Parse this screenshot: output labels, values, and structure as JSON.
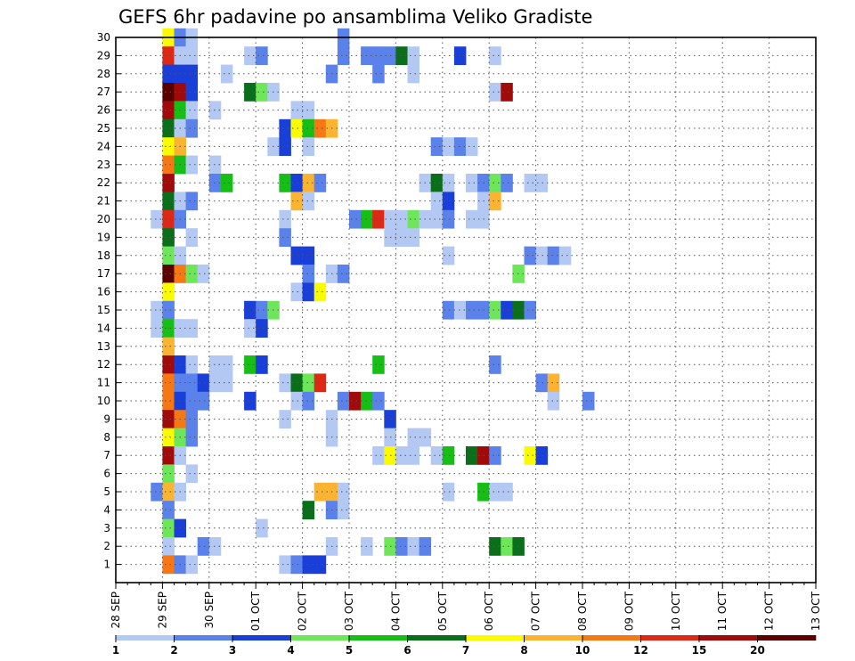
{
  "chart_data": {
    "type": "heatmap",
    "title": "GEFS 6hr padavine po ansamblima Veliko Gradiste",
    "x_ticks": [
      "28 SEP",
      "29 SEP",
      "30 SEP",
      "01 OCT",
      "02 OCT",
      "03 OCT",
      "04 OCT",
      "05 OCT",
      "06 OCT",
      "07 OCT",
      "08 OCT",
      "09 OCT",
      "10 OCT",
      "11 OCT",
      "12 OCT",
      "13 OCT"
    ],
    "y_ticks": [
      1,
      2,
      3,
      4,
      5,
      6,
      7,
      8,
      9,
      10,
      11,
      12,
      13,
      14,
      15,
      16,
      17,
      18,
      19,
      20,
      21,
      22,
      23,
      24,
      25,
      26,
      27,
      28,
      29,
      30
    ],
    "grid": true,
    "legend": "bottom colorbar",
    "colorbar": {
      "labels": [
        "1",
        "2",
        "3",
        "4",
        "5",
        "6",
        "7",
        "8",
        "10",
        "12",
        "15",
        "20"
      ],
      "colors": [
        "#b4c8f4",
        "#5a82ea",
        "#1a3ed8",
        "#6ee65a",
        "#16be16",
        "#0a6e1a",
        "#fafa00",
        "#fab432",
        "#f57814",
        "#dc2814",
        "#a00a0a",
        "#5a0000"
      ]
    },
    "cells": [
      [
        29.0,
        30,
        6
      ],
      [
        29.25,
        30,
        1
      ],
      [
        29.5,
        30,
        0
      ],
      [
        32.75,
        30,
        1
      ],
      [
        29.0,
        29,
        9
      ],
      [
        29.25,
        29,
        0
      ],
      [
        29.5,
        29,
        0
      ],
      [
        30.75,
        29,
        0
      ],
      [
        31.0,
        29,
        1
      ],
      [
        32.75,
        29,
        1
      ],
      [
        33.25,
        29,
        1
      ],
      [
        33.5,
        29,
        1
      ],
      [
        33.75,
        29,
        1
      ],
      [
        34.0,
        29,
        5
      ],
      [
        34.25,
        29,
        0
      ],
      [
        35.25,
        29,
        2
      ],
      [
        36.0,
        29,
        0
      ],
      [
        29.0,
        28,
        2
      ],
      [
        29.25,
        28,
        2
      ],
      [
        29.5,
        28,
        2
      ],
      [
        30.25,
        28,
        0
      ],
      [
        32.5,
        28,
        1
      ],
      [
        33.5,
        28,
        1
      ],
      [
        34.25,
        28,
        0
      ],
      [
        29.0,
        27,
        11
      ],
      [
        29.25,
        27,
        10
      ],
      [
        29.5,
        27,
        2
      ],
      [
        30.75,
        27,
        5
      ],
      [
        31.0,
        27,
        3
      ],
      [
        31.25,
        27,
        0
      ],
      [
        36.0,
        27,
        0
      ],
      [
        36.25,
        27,
        10
      ],
      [
        29.0,
        26,
        10
      ],
      [
        29.25,
        26,
        4
      ],
      [
        29.5,
        26,
        0
      ],
      [
        30.0,
        26,
        0
      ],
      [
        31.75,
        26,
        0
      ],
      [
        32.0,
        26,
        0
      ],
      [
        29.0,
        25,
        5
      ],
      [
        29.25,
        25,
        0
      ],
      [
        29.5,
        25,
        1
      ],
      [
        31.5,
        25,
        2
      ],
      [
        31.75,
        25,
        6
      ],
      [
        32.0,
        25,
        4
      ],
      [
        32.25,
        25,
        8
      ],
      [
        32.5,
        25,
        7
      ],
      [
        29.0,
        24,
        6
      ],
      [
        29.25,
        24,
        7
      ],
      [
        31.25,
        24,
        0
      ],
      [
        31.5,
        24,
        2
      ],
      [
        32.0,
        24,
        0
      ],
      [
        34.75,
        24,
        1
      ],
      [
        35.0,
        24,
        0
      ],
      [
        35.25,
        24,
        1
      ],
      [
        35.5,
        24,
        0
      ],
      [
        29.0,
        23,
        8
      ],
      [
        29.25,
        23,
        4
      ],
      [
        29.5,
        23,
        0
      ],
      [
        30.0,
        23,
        0
      ],
      [
        29.0,
        22,
        10
      ],
      [
        30.0,
        22,
        1
      ],
      [
        30.25,
        22,
        4
      ],
      [
        31.5,
        22,
        4
      ],
      [
        31.75,
        22,
        2
      ],
      [
        32.0,
        22,
        7
      ],
      [
        32.25,
        22,
        1
      ],
      [
        34.5,
        22,
        0
      ],
      [
        34.75,
        22,
        5
      ],
      [
        35.0,
        22,
        0
      ],
      [
        35.5,
        22,
        0
      ],
      [
        35.75,
        22,
        1
      ],
      [
        36.0,
        22,
        3
      ],
      [
        36.25,
        22,
        1
      ],
      [
        36.75,
        22,
        0
      ],
      [
        37.0,
        22,
        0
      ],
      [
        29.0,
        21,
        5
      ],
      [
        29.25,
        21,
        0
      ],
      [
        29.5,
        21,
        1
      ],
      [
        31.75,
        21,
        7
      ],
      [
        32.0,
        21,
        0
      ],
      [
        34.75,
        21,
        0
      ],
      [
        35.0,
        21,
        2
      ],
      [
        35.75,
        21,
        0
      ],
      [
        36.0,
        21,
        7
      ],
      [
        28.75,
        20,
        0
      ],
      [
        29.0,
        20,
        9
      ],
      [
        29.25,
        20,
        1
      ],
      [
        31.5,
        20,
        0
      ],
      [
        33.0,
        20,
        1
      ],
      [
        33.25,
        20,
        4
      ],
      [
        33.5,
        20,
        9
      ],
      [
        33.75,
        20,
        0
      ],
      [
        34.0,
        20,
        0
      ],
      [
        34.25,
        20,
        3
      ],
      [
        34.5,
        20,
        0
      ],
      [
        34.75,
        20,
        0
      ],
      [
        35.0,
        20,
        1
      ],
      [
        35.5,
        20,
        0
      ],
      [
        35.75,
        20,
        0
      ],
      [
        29.0,
        19,
        5
      ],
      [
        29.5,
        19,
        0
      ],
      [
        31.5,
        19,
        1
      ],
      [
        33.75,
        19,
        0
      ],
      [
        34.0,
        19,
        0
      ],
      [
        34.25,
        19,
        0
      ],
      [
        29.0,
        18,
        3
      ],
      [
        29.25,
        18,
        0
      ],
      [
        31.75,
        18,
        2
      ],
      [
        32.0,
        18,
        2
      ],
      [
        35.0,
        18,
        0
      ],
      [
        36.75,
        18,
        1
      ],
      [
        37.0,
        18,
        0
      ],
      [
        37.25,
        18,
        1
      ],
      [
        37.5,
        18,
        0
      ],
      [
        29.0,
        17,
        11
      ],
      [
        29.25,
        17,
        8
      ],
      [
        29.5,
        17,
        3
      ],
      [
        29.75,
        17,
        0
      ],
      [
        32.0,
        17,
        1
      ],
      [
        32.5,
        17,
        0
      ],
      [
        32.75,
        17,
        1
      ],
      [
        36.5,
        17,
        3
      ],
      [
        29.0,
        16,
        6
      ],
      [
        31.75,
        16,
        0
      ],
      [
        32.0,
        16,
        2
      ],
      [
        32.25,
        16,
        6
      ],
      [
        28.75,
        15,
        0
      ],
      [
        29.0,
        15,
        1
      ],
      [
        30.75,
        15,
        2
      ],
      [
        31.0,
        15,
        1
      ],
      [
        31.25,
        15,
        3
      ],
      [
        35.0,
        15,
        1
      ],
      [
        35.25,
        15,
        0
      ],
      [
        35.5,
        15,
        1
      ],
      [
        35.75,
        15,
        1
      ],
      [
        36.0,
        15,
        3
      ],
      [
        36.25,
        15,
        2
      ],
      [
        36.5,
        15,
        5
      ],
      [
        36.75,
        15,
        1
      ],
      [
        28.75,
        14,
        0
      ],
      [
        29.0,
        14,
        4
      ],
      [
        29.25,
        14,
        0
      ],
      [
        29.5,
        14,
        0
      ],
      [
        30.75,
        14,
        0
      ],
      [
        31.0,
        14,
        2
      ],
      [
        29.0,
        13,
        7
      ],
      [
        29.0,
        12,
        10
      ],
      [
        29.25,
        12,
        2
      ],
      [
        29.5,
        12,
        0
      ],
      [
        30.0,
        12,
        0
      ],
      [
        30.25,
        12,
        0
      ],
      [
        30.75,
        12,
        4
      ],
      [
        31.0,
        12,
        2
      ],
      [
        33.5,
        12,
        4
      ],
      [
        36.0,
        12,
        1
      ],
      [
        29.0,
        11,
        8
      ],
      [
        29.25,
        11,
        1
      ],
      [
        29.5,
        11,
        1
      ],
      [
        29.75,
        11,
        2
      ],
      [
        30.0,
        11,
        0
      ],
      [
        30.25,
        11,
        0
      ],
      [
        31.5,
        11,
        0
      ],
      [
        31.75,
        11,
        5
      ],
      [
        32.0,
        11,
        3
      ],
      [
        32.25,
        11,
        9
      ],
      [
        37.0,
        11,
        1
      ],
      [
        37.25,
        11,
        7
      ],
      [
        29.0,
        10,
        8
      ],
      [
        29.25,
        10,
        2
      ],
      [
        29.5,
        10,
        1
      ],
      [
        29.75,
        10,
        1
      ],
      [
        30.75,
        10,
        2
      ],
      [
        31.75,
        10,
        0
      ],
      [
        32.0,
        10,
        1
      ],
      [
        32.75,
        10,
        1
      ],
      [
        33.0,
        10,
        10
      ],
      [
        33.25,
        10,
        4
      ],
      [
        33.5,
        10,
        1
      ],
      [
        37.25,
        10,
        0
      ],
      [
        38.0,
        10,
        1
      ],
      [
        29.0,
        9,
        10
      ],
      [
        29.25,
        9,
        8
      ],
      [
        29.5,
        9,
        1
      ],
      [
        31.5,
        9,
        0
      ],
      [
        32.5,
        9,
        0
      ],
      [
        33.75,
        9,
        2
      ],
      [
        29.0,
        8,
        6
      ],
      [
        29.25,
        8,
        3
      ],
      [
        29.5,
        8,
        1
      ],
      [
        32.5,
        8,
        0
      ],
      [
        33.75,
        8,
        0
      ],
      [
        34.25,
        8,
        0
      ],
      [
        34.5,
        8,
        0
      ],
      [
        29.0,
        7,
        10
      ],
      [
        29.25,
        7,
        0
      ],
      [
        33.5,
        7,
        0
      ],
      [
        33.75,
        7,
        6
      ],
      [
        34.0,
        7,
        0
      ],
      [
        34.25,
        7,
        0
      ],
      [
        34.75,
        7,
        0
      ],
      [
        35.0,
        7,
        4
      ],
      [
        35.5,
        7,
        5
      ],
      [
        35.75,
        7,
        10
      ],
      [
        36.0,
        7,
        1
      ],
      [
        36.75,
        7,
        6
      ],
      [
        37.0,
        7,
        2
      ],
      [
        29.0,
        6,
        3
      ],
      [
        29.5,
        6,
        0
      ],
      [
        28.75,
        5,
        1
      ],
      [
        29.0,
        5,
        7
      ],
      [
        29.25,
        5,
        0
      ],
      [
        32.25,
        5,
        7
      ],
      [
        32.5,
        5,
        7
      ],
      [
        32.75,
        5,
        0
      ],
      [
        35.0,
        5,
        0
      ],
      [
        35.75,
        5,
        4
      ],
      [
        36.0,
        5,
        0
      ],
      [
        36.25,
        5,
        0
      ],
      [
        29.0,
        4,
        1
      ],
      [
        32.0,
        4,
        5
      ],
      [
        32.5,
        4,
        1
      ],
      [
        32.75,
        4,
        0
      ],
      [
        29.0,
        3,
        3
      ],
      [
        29.25,
        3,
        2
      ],
      [
        31.0,
        3,
        0
      ],
      [
        29.0,
        2,
        0
      ],
      [
        29.75,
        2,
        1
      ],
      [
        30.0,
        2,
        0
      ],
      [
        32.5,
        2,
        0
      ],
      [
        33.25,
        2,
        0
      ],
      [
        33.75,
        2,
        3
      ],
      [
        34.0,
        2,
        1
      ],
      [
        34.25,
        2,
        0
      ],
      [
        34.5,
        2,
        1
      ],
      [
        36.0,
        2,
        5
      ],
      [
        36.25,
        2,
        3
      ],
      [
        36.5,
        2,
        5
      ],
      [
        29.0,
        1,
        8
      ],
      [
        29.25,
        1,
        1
      ],
      [
        29.5,
        1,
        0
      ],
      [
        31.5,
        1,
        0
      ],
      [
        31.75,
        1,
        1
      ],
      [
        32.0,
        1,
        2
      ],
      [
        32.25,
        1,
        2
      ]
    ]
  }
}
